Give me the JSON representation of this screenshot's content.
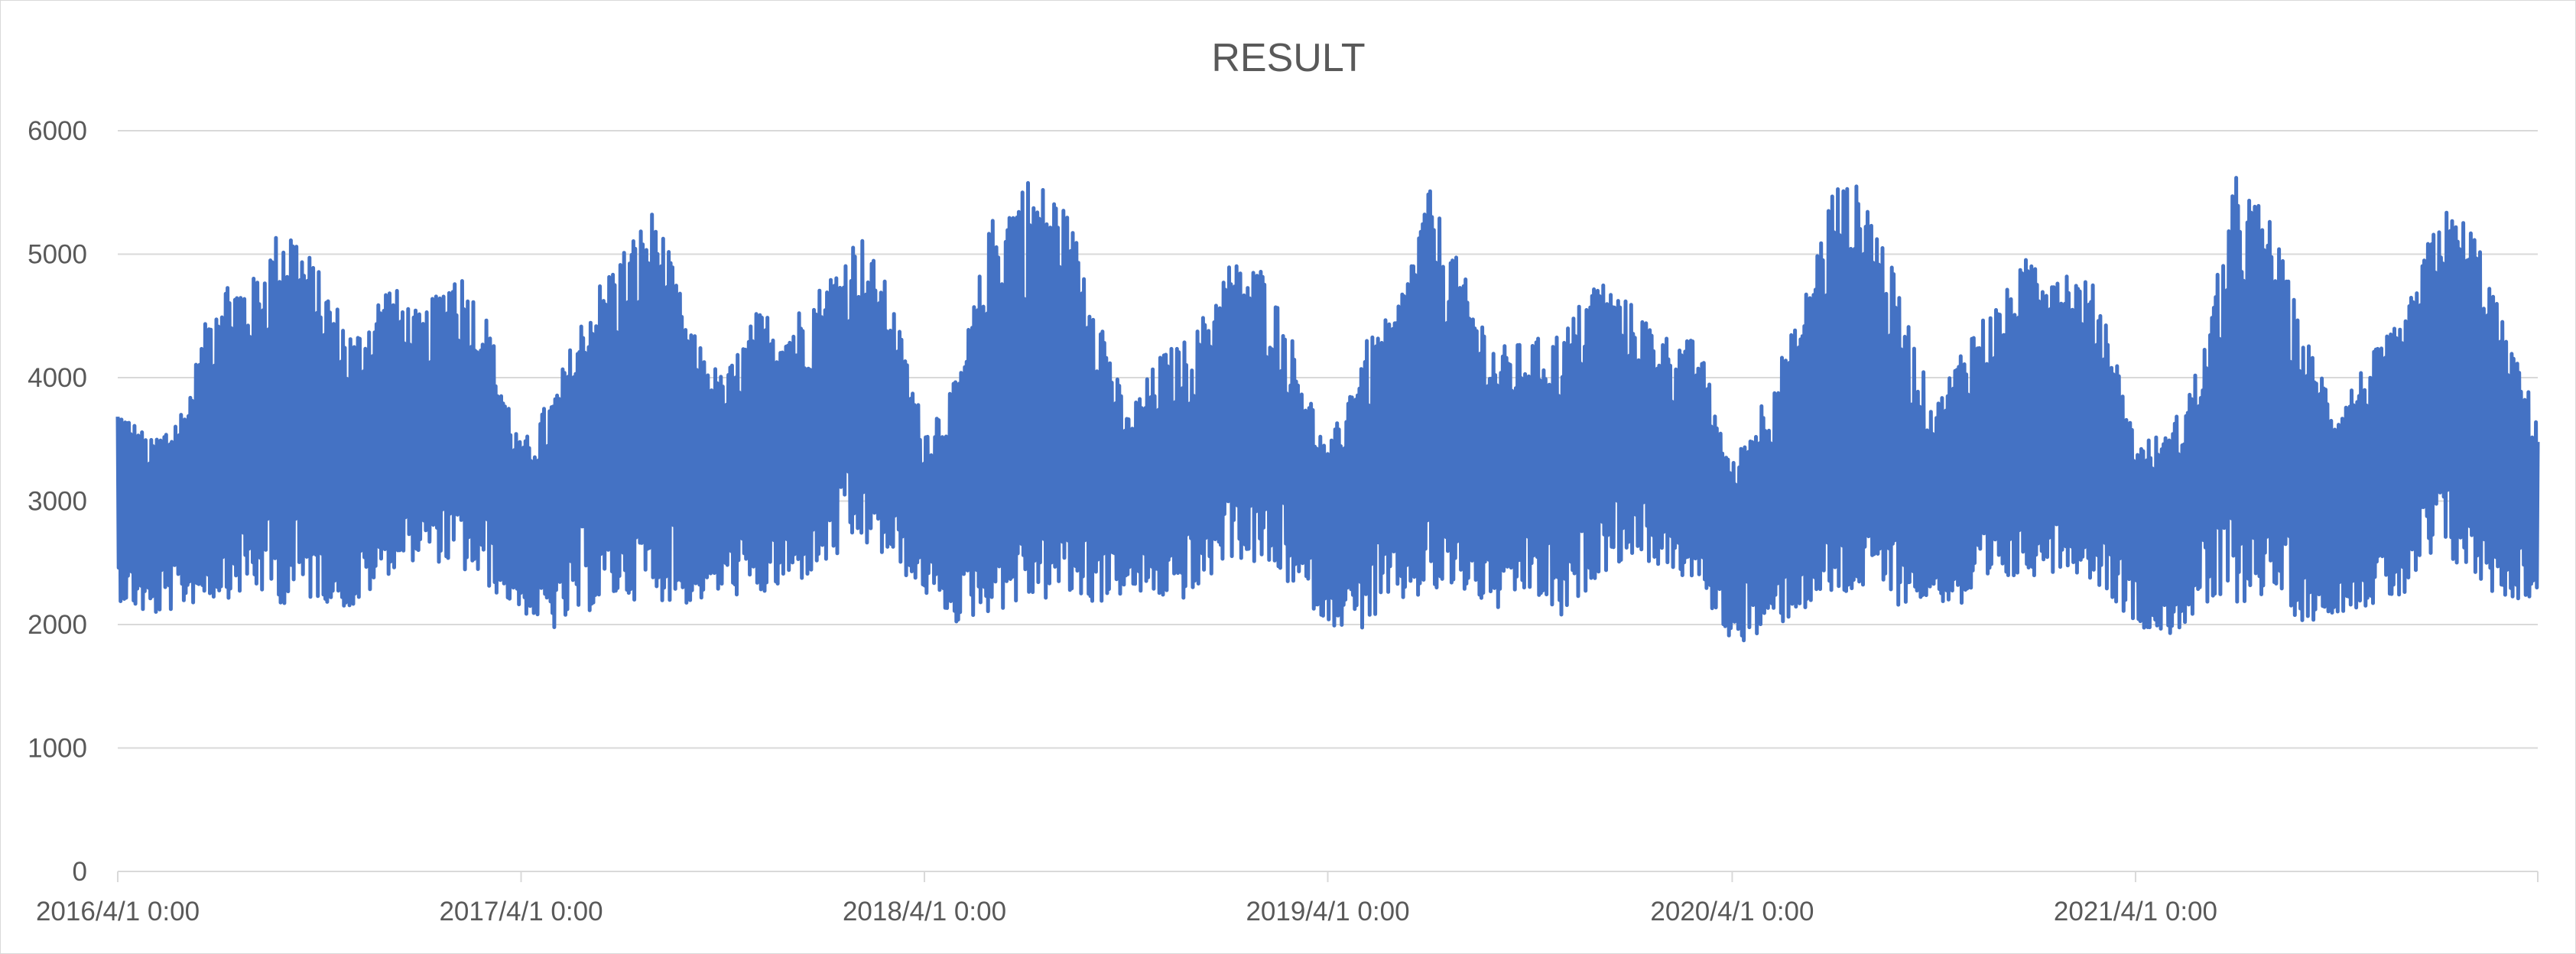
{
  "chart_data": {
    "type": "line",
    "title": "RESULT",
    "xlabel": "",
    "ylabel": "",
    "ylim": [
      0,
      6000
    ],
    "y_ticks": [
      "0",
      "1000",
      "2000",
      "3000",
      "4000",
      "5000",
      "6000"
    ],
    "x_ticks": [
      {
        "label": "2016/4/1 0:00",
        "value": "2016-04-01"
      },
      {
        "label": "2017/4/1 0:00",
        "value": "2017-04-01"
      },
      {
        "label": "2018/4/1 0:00",
        "value": "2018-04-01"
      },
      {
        "label": "2019/4/1 0:00",
        "value": "2019-04-01"
      },
      {
        "label": "2020/4/1 0:00",
        "value": "2020-04-01"
      },
      {
        "label": "2021/4/1 0:00",
        "value": "2021-04-01"
      }
    ],
    "xlim": [
      "2016-04-01",
      "2022-03-31"
    ],
    "grid": true,
    "legend": "none",
    "series_color": "#4472c4",
    "series": [
      {
        "x": [
          "2016-04-01",
          "2016-05-01",
          "2016-06-01",
          "2016-07-01",
          "2016-08-01",
          "2016-09-01",
          "2016-10-01",
          "2016-11-01",
          "2016-12-01",
          "2017-01-01",
          "2017-02-01",
          "2017-03-01",
          "2017-04-01",
          "2017-05-01",
          "2017-06-01",
          "2017-07-01",
          "2017-08-01",
          "2017-09-01",
          "2017-10-01",
          "2017-11-01",
          "2017-12-01",
          "2018-01-01",
          "2018-02-01",
          "2018-03-01",
          "2018-04-01",
          "2018-05-01",
          "2018-06-01",
          "2018-07-01",
          "2018-08-01",
          "2018-09-01",
          "2018-10-01",
          "2018-11-01",
          "2018-12-01",
          "2019-01-01",
          "2019-02-01",
          "2019-03-01",
          "2019-04-01",
          "2019-05-01",
          "2019-06-01",
          "2019-07-01",
          "2019-08-01",
          "2019-09-01",
          "2019-10-01",
          "2019-11-01",
          "2019-12-01",
          "2020-01-01",
          "2020-02-01",
          "2020-03-01",
          "2020-04-01",
          "2020-05-01",
          "2020-06-01",
          "2020-07-01",
          "2020-08-01",
          "2020-09-01",
          "2020-10-01",
          "2020-11-01",
          "2020-12-01",
          "2021-01-01",
          "2021-02-01",
          "2021-03-01",
          "2021-04-01",
          "2021-05-01",
          "2021-06-01",
          "2021-07-01",
          "2021-08-01",
          "2021-09-01",
          "2021-10-01",
          "2021-11-01",
          "2021-12-01",
          "2022-01-01",
          "2022-02-01",
          "2022-03-01",
          "2022-03-31"
        ],
        "min": [
          2200,
          2050,
          2150,
          2200,
          2250,
          2150,
          2200,
          2100,
          2400,
          2550,
          2450,
          2300,
          2100,
          1950,
          2100,
          2200,
          2200,
          2150,
          2250,
          2200,
          2300,
          2450,
          2650,
          2500,
          2250,
          2000,
          2100,
          2150,
          2200,
          2150,
          2250,
          2200,
          2200,
          2550,
          2450,
          2300,
          2000,
          1950,
          2150,
          2200,
          2250,
          2100,
          2250,
          2000,
          2400,
          2550,
          2450,
          2300,
          1850,
          1900,
          2100,
          2150,
          2250,
          2150,
          2200,
          2100,
          2300,
          2400,
          2450,
          2300,
          2000,
          1900,
          2100,
          2150,
          2250,
          2000,
          2100,
          2150,
          2200,
          2550,
          2350,
          2200,
          2200
        ],
        "max": [
          3800,
          3500,
          3800,
          4850,
          4800,
          5350,
          4850,
          4350,
          4800,
          4500,
          4950,
          4500,
          3450,
          3900,
          4650,
          5050,
          5400,
          4400,
          4000,
          4550,
          4500,
          4800,
          5200,
          4700,
          3600,
          4000,
          5300,
          5650,
          5500,
          4800,
          3700,
          4200,
          4350,
          4950,
          4900,
          4300,
          3400,
          4250,
          4550,
          5550,
          4850,
          4250,
          4300,
          4400,
          4850,
          4600,
          4350,
          4300,
          3300,
          3900,
          4500,
          5600,
          5550,
          4650,
          3750,
          4400,
          4650,
          5100,
          4900,
          4700,
          3500,
          3550,
          4200,
          5650,
          5300,
          4350,
          3800,
          4200,
          4500,
          5400,
          5250,
          4400,
          3700
        ]
      }
    ]
  }
}
